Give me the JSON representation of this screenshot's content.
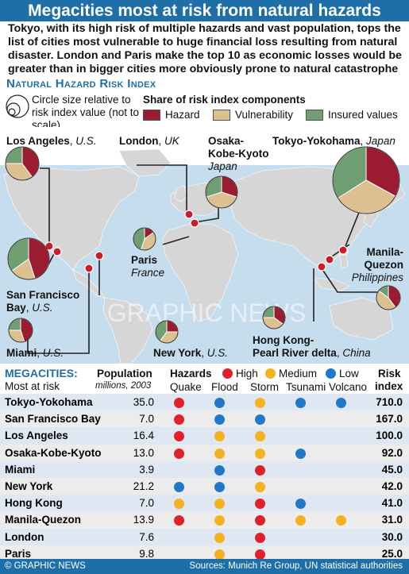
{
  "title": "Megacities most at risk from natural hazards",
  "intro": "Tokyo, with its high risk of multiple hazards and vast population, tops the list of cities most vulnerable to huge financial loss resulting from natural disaster. London and Paris make the top 10 as economic losses would be greater than in bigger cities more obviously prone to natural catastrophe",
  "section_title": "Natural Hazard Risk Index",
  "legend": {
    "size_note": "Circle size relative to risk index value (not to scale)",
    "share_title": "Share of risk index components",
    "components": [
      {
        "label": "Hazard",
        "color": "#9b1b30"
      },
      {
        "label": "Vulnerability",
        "color": "#dcc08f"
      },
      {
        "label": "Insured values",
        "color": "#6f9e73"
      }
    ]
  },
  "map_labels": [
    {
      "city": "Los Angeles",
      "country": "U.S."
    },
    {
      "city": "London",
      "country": "UK"
    },
    {
      "city": "Osaka-",
      "city2": "Kobe-Kyoto",
      "country": "Japan"
    },
    {
      "city": "Tokyo-Yokohama",
      "country": "Japan"
    },
    {
      "city": "Paris",
      "country": "France"
    },
    {
      "city": "San Francisco",
      "city2": "Bay",
      "country": "U.S."
    },
    {
      "city": "Manila-",
      "city2": "Quezon",
      "country": "Philippines"
    },
    {
      "city": "Miami",
      "country": "U.S."
    },
    {
      "city": "New York",
      "country": "U.S."
    },
    {
      "city": "Hong Kong-",
      "city2": "Pearl River delta",
      "country": "China"
    }
  ],
  "table_header": {
    "col1": "Megacities:",
    "col1_sub": "Most at risk",
    "pop": "Population",
    "pop_sub": "millions, 2003",
    "hazards": "Hazards",
    "high": "High",
    "medium": "Medium",
    "low": "Low",
    "hazard_types": [
      "Quake",
      "Flood",
      "Storm",
      "Tsunami",
      "Volcano"
    ],
    "risk": "Risk",
    "risk_sub": "index"
  },
  "level_colors": {
    "H": "#e0202a",
    "M": "#f5b120",
    "L": "#1f78c8"
  },
  "chart_data": {
    "type": "table",
    "columns": [
      "Megacity",
      "Population (millions, 2003)",
      "Quake",
      "Flood",
      "Storm",
      "Tsunami",
      "Volcano",
      "Risk index"
    ],
    "rows": [
      {
        "city": "Tokyo-Yokohama",
        "population": "35.0",
        "hazards": [
          "H",
          "L",
          "M",
          "L",
          "L"
        ],
        "risk": "710.0",
        "shares": [
          0.33,
          0.33,
          0.34
        ]
      },
      {
        "city": "San Francisco Bay",
        "population": "7.0",
        "hazards": [
          "H",
          "L",
          "L",
          "",
          ""
        ],
        "risk": "167.0",
        "shares": [
          0.45,
          0.2,
          0.35
        ]
      },
      {
        "city": "Los Angeles",
        "population": "16.4",
        "hazards": [
          "H",
          "M",
          "M",
          "",
          ""
        ],
        "risk": "100.0",
        "shares": [
          0.4,
          0.35,
          0.25
        ]
      },
      {
        "city": "Osaka-Kobe-Kyoto",
        "population": "13.0",
        "hazards": [
          "H",
          "M",
          "M",
          "L",
          ""
        ],
        "risk": "92.0",
        "shares": [
          0.3,
          0.4,
          0.3
        ]
      },
      {
        "city": "Miami",
        "population": "3.9",
        "hazards": [
          "",
          "L",
          "H",
          "",
          ""
        ],
        "risk": "45.0",
        "shares": [
          0.45,
          0.3,
          0.25
        ]
      },
      {
        "city": "New York",
        "population": "21.2",
        "hazards": [
          "L",
          "L",
          "M",
          "",
          ""
        ],
        "risk": "42.0",
        "shares": [
          0.25,
          0.35,
          0.4
        ]
      },
      {
        "city": "Hong Kong",
        "population": "7.0",
        "hazards": [
          "M",
          "M",
          "H",
          "L",
          ""
        ],
        "risk": "41.0",
        "shares": [
          0.35,
          0.4,
          0.25
        ]
      },
      {
        "city": "Manila-Quezon",
        "population": "13.9",
        "hazards": [
          "H",
          "M",
          "H",
          "M",
          "M"
        ],
        "risk": "31.0",
        "shares": [
          0.4,
          0.45,
          0.15
        ]
      },
      {
        "city": "London",
        "population": "7.6",
        "hazards": [
          "",
          "M",
          "H",
          "",
          ""
        ],
        "risk": "30.0",
        "shares": [
          0.15,
          0.4,
          0.45
        ]
      },
      {
        "city": "Paris",
        "population": "9.8",
        "hazards": [
          "",
          "M",
          "H",
          "",
          ""
        ],
        "risk": "25.0",
        "shares": [
          0.15,
          0.4,
          0.45
        ]
      }
    ]
  },
  "footer": {
    "left": "© GRAPHIC NEWS",
    "right": "Sources: Munich Re Group, UN statistical authorities"
  }
}
